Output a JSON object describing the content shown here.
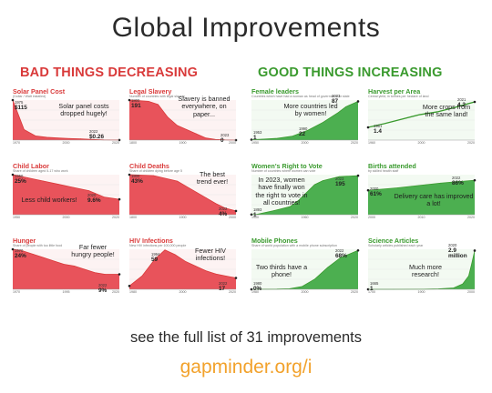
{
  "title": "Global Improvements",
  "bad_heading": "BAD THINGS DECREASING",
  "good_heading": "GOOD THINGS INCREASING",
  "footer_line1": "see the full list of 31 improvements",
  "footer_line2": "gapminder.org/i",
  "colors": {
    "bad": "#d93a3a",
    "bad_fill": "#e8535b",
    "good": "#3a9a2e",
    "good_fill": "#4caf50",
    "link": "#f2a22c"
  },
  "chart_data": [
    {
      "id": "solar",
      "type": "area",
      "title": "Solar Panel Cost",
      "subtitle": "(Dollar / Watt installed)",
      "annotation": "Solar panel costs dropped hugely!",
      "start_label": "1975",
      "start_value": "$115",
      "end_label": "2022",
      "end_value": "$0.26",
      "x": [
        1975,
        1980,
        1985,
        1990,
        1995,
        2000,
        2005,
        2010,
        2015,
        2022
      ],
      "values": [
        115,
        30,
        12,
        8,
        6,
        4.5,
        3.5,
        2,
        0.6,
        0.26
      ],
      "ylim": [
        0,
        115
      ],
      "x_ticks": [
        "1970",
        "2000",
        "2020"
      ]
    },
    {
      "id": "slavery",
      "type": "area",
      "title": "Legal Slavery",
      "subtitle": "Number of countries with legal slavery",
      "annotation": "Slavery is banned everywhere, on paper...",
      "start_label": "1800",
      "start_value": "191",
      "end_label": "2023",
      "end_value": "0",
      "x": [
        1800,
        1820,
        1840,
        1860,
        1880,
        1900,
        1920,
        1940,
        1960,
        1980,
        2000,
        2023
      ],
      "values": [
        191,
        188,
        185,
        170,
        110,
        70,
        50,
        30,
        10,
        3,
        1,
        0
      ],
      "ylim": [
        0,
        191
      ],
      "x_ticks": [
        "1800",
        "1900",
        "2000"
      ]
    },
    {
      "id": "child_labor",
      "type": "area",
      "title": "Child Labor",
      "subtitle": "Share of children aged 5-17 who work",
      "annotation": "Less child workers!",
      "start_label": "1950",
      "start_value": "25%",
      "end_label": "2020",
      "end_value": "9.6%",
      "x": [
        1950,
        1960,
        1970,
        1980,
        1990,
        2000,
        2010,
        2020
      ],
      "values": [
        25,
        23,
        21,
        19,
        17,
        15,
        11,
        9.6
      ],
      "ylim": [
        0,
        25
      ],
      "x_ticks": [
        "1950",
        "2000",
        "2020"
      ]
    },
    {
      "id": "child_deaths",
      "type": "area",
      "title": "Child Deaths",
      "subtitle": "Share of children dying before age 5",
      "annotation": "The best trend ever!",
      "start_label": "1800",
      "start_value": "43%",
      "end_label": "2022",
      "end_value": "4%",
      "x": [
        1800,
        1850,
        1900,
        1920,
        1940,
        1960,
        1980,
        2000,
        2022
      ],
      "values": [
        43,
        42,
        36,
        30,
        24,
        18,
        12,
        7,
        4
      ],
      "ylim": [
        0,
        43
      ],
      "x_ticks": [
        "1800",
        "1900",
        "2000"
      ]
    },
    {
      "id": "hunger",
      "type": "area",
      "title": "Hunger",
      "subtitle": "Share of people with too little food",
      "annotation": "Far fewer hungry people!",
      "start_label": "1970",
      "start_value": "24%",
      "end_label": "2022",
      "end_value": "9%",
      "x": [
        1970,
        1975,
        1980,
        1985,
        1990,
        1995,
        2000,
        2005,
        2010,
        2015,
        2022
      ],
      "values": [
        24,
        23,
        21,
        19,
        17,
        15,
        14,
        12,
        10,
        9,
        9
      ],
      "ylim": [
        0,
        24
      ],
      "x_ticks": [
        "1970",
        "1995",
        "2020"
      ]
    },
    {
      "id": "hiv",
      "type": "area",
      "title": "HIV Infections",
      "subtitle": "New HIV infections per 100,000 people",
      "annotation": "Fewer HIV infections!",
      "start_label": "1994",
      "start_value": "59",
      "end_label": "2022",
      "end_value": "17",
      "x": [
        1980,
        1985,
        1990,
        1994,
        1998,
        2002,
        2006,
        2010,
        2014,
        2018,
        2022
      ],
      "values": [
        5,
        20,
        45,
        59,
        52,
        42,
        35,
        28,
        23,
        20,
        17
      ],
      "ylim": [
        0,
        60
      ],
      "x_ticks": [
        "1980",
        "2000",
        "2020"
      ]
    },
    {
      "id": "female_leaders",
      "type": "area",
      "title": "Female leaders",
      "subtitle": "Countries which have had a woman as head of government or state",
      "annotation": "More countries led by women!",
      "start_label": "1953",
      "start_value": "1",
      "mid_label": "1990",
      "mid_value": "22",
      "end_label": "2023",
      "end_value": "87",
      "x": [
        1953,
        1960,
        1970,
        1980,
        1990,
        2000,
        2010,
        2015,
        2023
      ],
      "values": [
        1,
        2,
        4,
        9,
        22,
        40,
        62,
        75,
        87
      ],
      "ylim": [
        0,
        90
      ],
      "x_ticks": [
        "1950",
        "2000",
        "2020"
      ]
    },
    {
      "id": "harvest",
      "type": "line",
      "title": "Harvest per Area",
      "subtitle": "Cereal yield, in tonnes per hectare of land",
      "annotation": "More crops from the same land!",
      "start_label": "1961",
      "start_value": "1.4",
      "end_label": "2021",
      "end_value": "4.2",
      "x": [
        1961,
        1970,
        1980,
        1990,
        2000,
        2010,
        2021
      ],
      "values": [
        1.4,
        1.8,
        2.3,
        2.8,
        3.1,
        3.6,
        4.2
      ],
      "ylim": [
        0,
        4.4
      ],
      "x_ticks": [
        "1960",
        "2000",
        "2020"
      ]
    },
    {
      "id": "womens_vote",
      "type": "area",
      "title": "Women's Right to Vote",
      "subtitle": "Number of countries where women can vote",
      "annotation": "In 2023, women have finally won the right to vote in all countries!",
      "start_label": "1893",
      "start_value": "1",
      "end_label": "2023",
      "end_value": "195",
      "x": [
        1893,
        1900,
        1920,
        1940,
        1950,
        1960,
        1970,
        1980,
        2000,
        2023
      ],
      "values": [
        1,
        2,
        20,
        40,
        70,
        110,
        150,
        170,
        190,
        195
      ],
      "ylim": [
        0,
        200
      ],
      "x_ticks": [
        "1900",
        "1960",
        "2020"
      ]
    },
    {
      "id": "births_attended",
      "type": "area",
      "title": "Births attended",
      "subtitle": "by skilled health staff",
      "annotation": "Delivery care has improved a lot!",
      "start_label": "2000",
      "start_value": "61%",
      "end_label": "2022",
      "end_value": "86%",
      "x": [
        2000,
        2003,
        2006,
        2009,
        2012,
        2015,
        2018,
        2022
      ],
      "values": [
        61,
        64,
        67,
        71,
        75,
        79,
        82,
        86
      ],
      "ylim": [
        0,
        100
      ],
      "x_ticks": [
        "2000",
        "2010",
        "2020"
      ]
    },
    {
      "id": "mobile_phones",
      "type": "area",
      "title": "Mobile Phones",
      "subtitle": "Share of world population with a mobile phone subscription",
      "annotation": "Two thirds have a phone!",
      "start_label": "1980",
      "start_value": "0%",
      "end_label": "2022",
      "end_value": "68%",
      "x": [
        1980,
        1990,
        1995,
        2000,
        2005,
        2010,
        2015,
        2022
      ],
      "values": [
        0,
        0.3,
        1,
        5,
        18,
        38,
        55,
        68
      ],
      "ylim": [
        0,
        70
      ],
      "x_ticks": [
        "1980",
        "2000",
        "2020"
      ]
    },
    {
      "id": "science_articles",
      "type": "area",
      "title": "Science Articles",
      "subtitle": "Scholarly articles published each year",
      "annotation": "Much more research!",
      "start_label": "1665",
      "start_value": "1",
      "end_label": "2020",
      "end_value": "2.9 million",
      "x": [
        1665,
        1750,
        1850,
        1900,
        1950,
        1980,
        2000,
        2010,
        2020
      ],
      "values": [
        0,
        0.001,
        0.01,
        0.03,
        0.1,
        0.4,
        1.0,
        1.9,
        2.9
      ],
      "ylim": [
        0,
        3
      ],
      "x_ticks": [
        "1700",
        "1900",
        "2000"
      ]
    }
  ]
}
